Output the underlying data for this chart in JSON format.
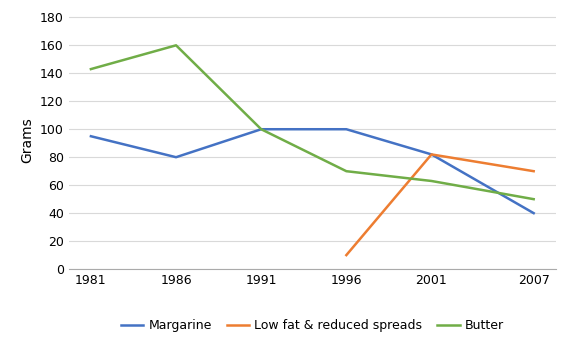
{
  "years": [
    1981,
    1986,
    1991,
    1996,
    2001,
    2007
  ],
  "margarine": [
    95,
    80,
    100,
    100,
    82,
    40
  ],
  "low_fat": [
    null,
    null,
    null,
    10,
    82,
    70
  ],
  "butter": [
    143,
    160,
    100,
    70,
    63,
    50
  ],
  "margarine_color": "#4472C4",
  "low_fat_color": "#ED7D31",
  "butter_color": "#70AD47",
  "ylabel": "Grams",
  "ylim": [
    0,
    185
  ],
  "yticks": [
    0,
    20,
    40,
    60,
    80,
    100,
    120,
    140,
    160,
    180
  ],
  "legend_labels": [
    "Margarine",
    "Low fat & reduced spreads",
    "Butter"
  ],
  "background_color": "#ffffff",
  "grid_color": "#d9d9d9",
  "linewidth": 1.8
}
